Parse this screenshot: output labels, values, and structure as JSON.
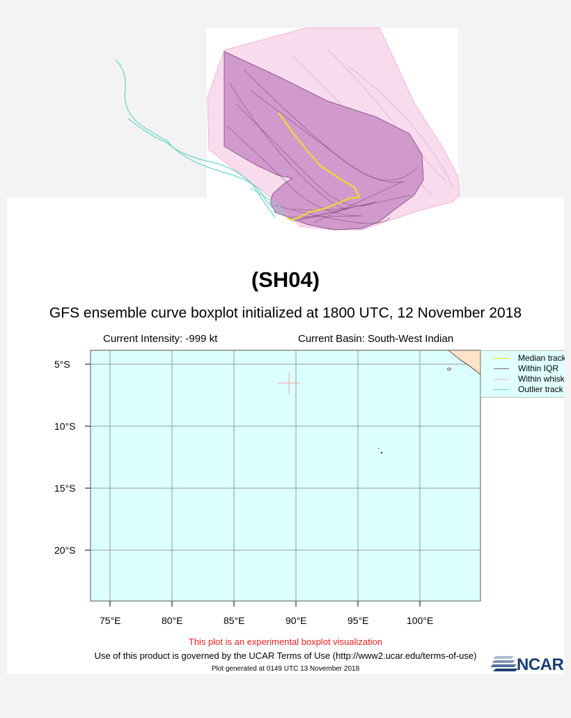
{
  "storm_id": "(SH04)",
  "subtitle": "GFS ensemble curve boxplot initialized at 1800 UTC, 12 November 2018",
  "current_intensity": "Current Intensity: -999 kt",
  "current_basin": "Current Basin: South-West Indian",
  "map": {
    "lat_labels": [
      "5°S",
      "10°S",
      "15°S",
      "20°S"
    ],
    "lon_labels": [
      "75°E",
      "80°E",
      "85°E",
      "90°E",
      "95°E",
      "100°E"
    ],
    "background_color": "#dcffff",
    "grid_color": "#9a9a9a"
  },
  "legend": {
    "items": [
      {
        "label": "Median track",
        "color": "#f2e21e"
      },
      {
        "label": "Within IQR",
        "color": "#8a5a8a"
      },
      {
        "label": "Within whiskers",
        "color": "#f4b6d6"
      },
      {
        "label": "Outlier track",
        "color": "#6fd6c6"
      }
    ]
  },
  "experimental_note": "This plot is an experimental boxplot visualization",
  "terms": "Use of this product is governed by the UCAR Terms of Use (http://www2.ucar.edu/terms-of-use)",
  "generated": "Plot generated at 0149 UTC   13 November 2018",
  "logo_text": "NCAR",
  "colors": {
    "iqr_fill": "#c98ec6",
    "whisker_fill": "#f7d5ea",
    "median": "#f2d33a",
    "outlier": "#6fd6c6",
    "land": "#fde4c8",
    "experimental_text": "#e8201f"
  }
}
